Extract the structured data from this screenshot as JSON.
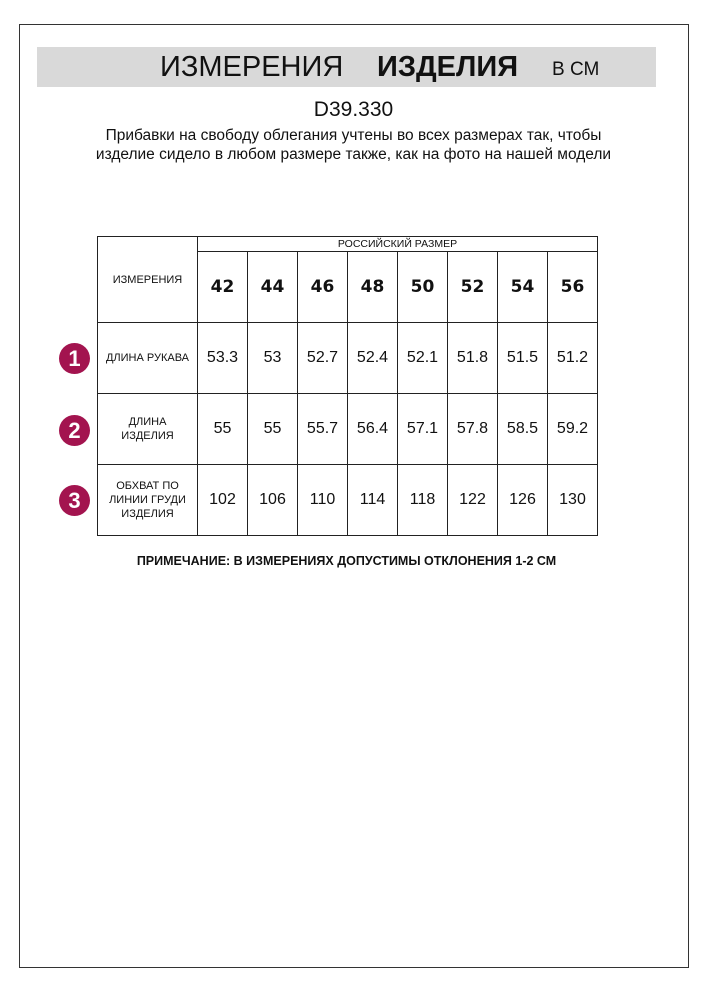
{
  "header": {
    "title_regular": "ИЗМЕРЕНИЯ",
    "title_bold": "ИЗДЕЛИЯ",
    "unit": "В СМ"
  },
  "article": "D39.330",
  "description": "Прибавки на свободу облегания учтены во всех размерах так, чтобы изделие сидело в любом размере также, как на фото на нашей модели",
  "table": {
    "corner_label": "ИЗМЕРЕНИЯ",
    "group_label": "РОССИЙСКИЙ РАЗМЕР",
    "sizes": [
      "42",
      "44",
      "46",
      "48",
      "50",
      "52",
      "54",
      "56"
    ],
    "rows": [
      {
        "num": "1",
        "label": "ДЛИНА РУКАВА",
        "values": [
          "53.3",
          "53",
          "52.7",
          "52.4",
          "52.1",
          "51.8",
          "51.5",
          "51.2"
        ]
      },
      {
        "num": "2",
        "label": "ДЛИНА ИЗДЕЛИЯ",
        "values": [
          "55",
          "55",
          "55.7",
          "56.4",
          "57.1",
          "57.8",
          "58.5",
          "59.2"
        ]
      },
      {
        "num": "3",
        "label": "ОБХВАТ ПО ЛИНИИ ГРУДИ ИЗДЕЛИЯ",
        "values": [
          "102",
          "106",
          "110",
          "114",
          "118",
          "122",
          "126",
          "130"
        ]
      }
    ]
  },
  "note": "ПРИМЕЧАНИЕ: В ИЗМЕРЕНИЯХ ДОПУСТИМЫ ОТКЛОНЕНИЯ 1-2 СМ",
  "colors": {
    "badge": "#a3144f",
    "title_bar": "#d9d9d9"
  }
}
